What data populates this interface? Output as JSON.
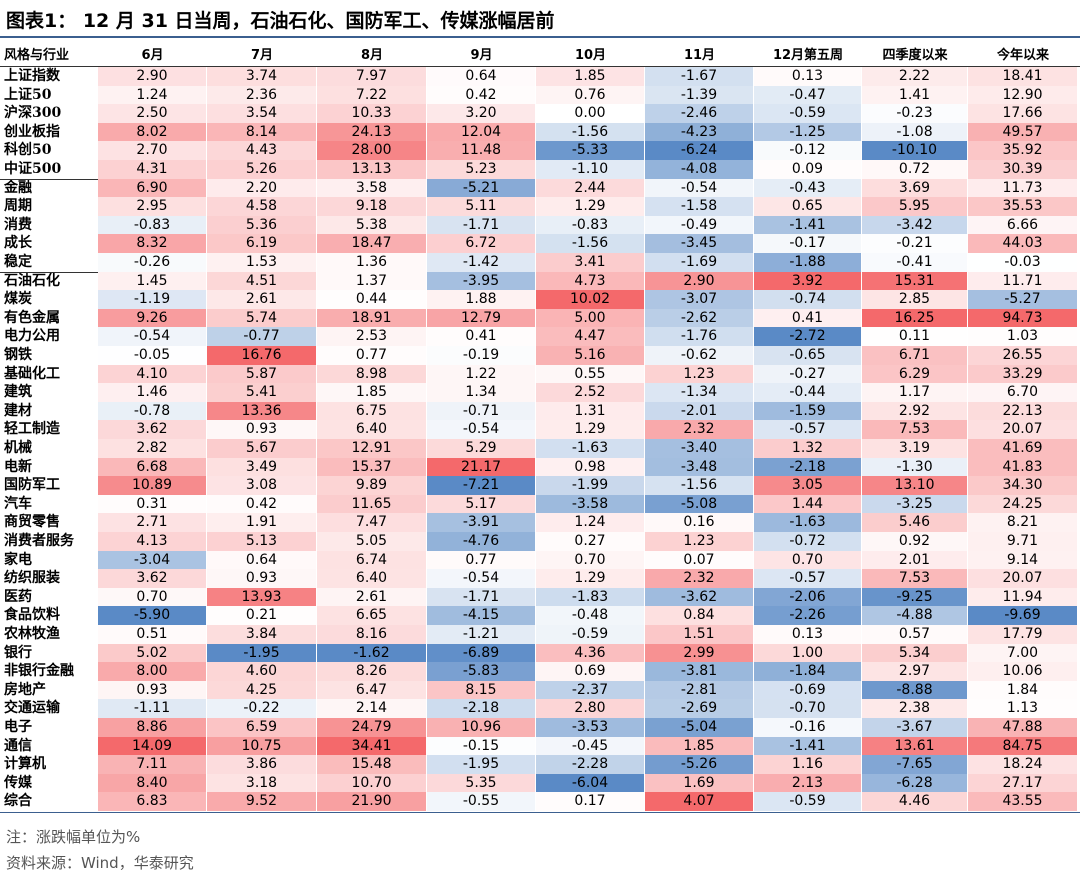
{
  "header": {
    "title": "图表1： 12 月 31 日当周，石油石化、国防军工、传媒涨幅居前"
  },
  "table": {
    "columns": [
      "风格与行业",
      "6月",
      "7月",
      "8月",
      "9月",
      "10月",
      "11月",
      "12月第五周",
      "四季度以来",
      "今年以来"
    ],
    "rows": [
      [
        "上证指数",
        "2.90",
        "3.74",
        "7.97",
        "0.64",
        "1.85",
        "-1.67",
        "0.13",
        "2.22",
        "18.41"
      ],
      [
        "上证50",
        "1.24",
        "2.36",
        "7.22",
        "0.42",
        "0.76",
        "-1.39",
        "-0.47",
        "1.41",
        "12.90"
      ],
      [
        "沪深300",
        "2.50",
        "3.54",
        "10.33",
        "3.20",
        "0.00",
        "-2.46",
        "-0.59",
        "-0.23",
        "17.66"
      ],
      [
        "创业板指",
        "8.02",
        "8.14",
        "24.13",
        "12.04",
        "-1.56",
        "-4.23",
        "-1.25",
        "-1.08",
        "49.57"
      ],
      [
        "科创50",
        "2.70",
        "4.43",
        "28.00",
        "11.48",
        "-5.33",
        "-6.24",
        "-0.12",
        "-10.10",
        "35.92"
      ],
      [
        "中证500",
        "4.31",
        "5.26",
        "13.13",
        "5.23",
        "-1.10",
        "-4.08",
        "0.09",
        "0.72",
        "30.39"
      ],
      [
        "金融",
        "6.90",
        "2.20",
        "3.58",
        "-5.21",
        "2.44",
        "-0.54",
        "-0.43",
        "3.69",
        "11.73"
      ],
      [
        "周期",
        "2.95",
        "4.58",
        "9.18",
        "5.11",
        "1.29",
        "-1.58",
        "0.65",
        "5.95",
        "35.53"
      ],
      [
        "消费",
        "-0.83",
        "5.36",
        "5.38",
        "-1.71",
        "-0.83",
        "-0.49",
        "-1.41",
        "-3.42",
        "6.66"
      ],
      [
        "成长",
        "8.32",
        "6.19",
        "18.47",
        "6.72",
        "-1.56",
        "-3.45",
        "-0.17",
        "-0.21",
        "44.03"
      ],
      [
        "稳定",
        "-0.26",
        "1.53",
        "1.36",
        "-1.42",
        "3.41",
        "-1.69",
        "-1.88",
        "-0.41",
        "-0.03"
      ],
      [
        "石油石化",
        "1.45",
        "4.51",
        "1.37",
        "-3.95",
        "4.73",
        "2.90",
        "3.92",
        "15.31",
        "11.71"
      ],
      [
        "煤炭",
        "-1.19",
        "2.61",
        "0.44",
        "1.88",
        "10.02",
        "-3.07",
        "-0.74",
        "2.85",
        "-5.27"
      ],
      [
        "有色金属",
        "9.26",
        "5.74",
        "18.91",
        "12.79",
        "5.00",
        "-2.62",
        "0.41",
        "16.25",
        "94.73"
      ],
      [
        "电力公用",
        "-0.54",
        "-0.77",
        "2.53",
        "0.41",
        "4.47",
        "-1.76",
        "-2.72",
        "0.11",
        "1.03"
      ],
      [
        "钢铁",
        "-0.05",
        "16.76",
        "0.77",
        "-0.19",
        "5.16",
        "-0.62",
        "-0.65",
        "6.71",
        "26.55"
      ],
      [
        "基础化工",
        "4.10",
        "5.87",
        "8.98",
        "1.22",
        "0.55",
        "1.23",
        "-0.27",
        "6.29",
        "33.29"
      ],
      [
        "建筑",
        "1.46",
        "5.41",
        "1.85",
        "1.34",
        "2.52",
        "-1.34",
        "-0.44",
        "1.17",
        "6.70"
      ],
      [
        "建材",
        "-0.78",
        "13.36",
        "6.75",
        "-0.71",
        "1.31",
        "-2.01",
        "-1.59",
        "2.92",
        "22.13"
      ],
      [
        "轻工制造",
        "3.62",
        "0.93",
        "6.40",
        "-0.54",
        "1.29",
        "2.32",
        "-0.57",
        "7.53",
        "20.07"
      ],
      [
        "机械",
        "2.82",
        "5.67",
        "12.91",
        "5.29",
        "-1.63",
        "-3.40",
        "1.32",
        "3.19",
        "41.69"
      ],
      [
        "电新",
        "6.68",
        "3.49",
        "15.37",
        "21.17",
        "0.98",
        "-3.48",
        "-2.18",
        "-1.30",
        "41.83"
      ],
      [
        "国防军工",
        "10.89",
        "3.08",
        "9.89",
        "-7.21",
        "-1.99",
        "-1.56",
        "3.05",
        "13.10",
        "34.30"
      ],
      [
        "汽车",
        "0.31",
        "0.42",
        "11.65",
        "5.17",
        "-3.58",
        "-5.08",
        "1.44",
        "-3.25",
        "24.25"
      ],
      [
        "商贸零售",
        "2.71",
        "1.91",
        "7.47",
        "-3.91",
        "1.24",
        "0.16",
        "-1.63",
        "5.46",
        "8.21"
      ],
      [
        "消费者服务",
        "4.13",
        "5.13",
        "5.05",
        "-4.76",
        "0.27",
        "1.23",
        "-0.72",
        "0.92",
        "9.71"
      ],
      [
        "家电",
        "-3.04",
        "0.64",
        "6.74",
        "0.77",
        "0.70",
        "0.07",
        "0.70",
        "2.01",
        "9.14"
      ],
      [
        "纺织服装",
        "3.62",
        "0.93",
        "6.40",
        "-0.54",
        "1.29",
        "2.32",
        "-0.57",
        "7.53",
        "20.07"
      ],
      [
        "医药",
        "0.70",
        "13.93",
        "2.61",
        "-1.71",
        "-1.83",
        "-3.62",
        "-2.06",
        "-9.25",
        "11.94"
      ],
      [
        "食品饮料",
        "-5.90",
        "0.21",
        "6.65",
        "-4.15",
        "-0.48",
        "0.84",
        "-2.26",
        "-4.88",
        "-9.69"
      ],
      [
        "农林牧渔",
        "0.51",
        "3.84",
        "8.16",
        "-1.21",
        "-0.59",
        "1.51",
        "0.13",
        "0.57",
        "17.79"
      ],
      [
        "银行",
        "5.02",
        "-1.95",
        "-1.62",
        "-6.89",
        "4.36",
        "2.99",
        "1.00",
        "5.34",
        "7.00"
      ],
      [
        "非银行金融",
        "8.00",
        "4.60",
        "8.26",
        "-5.83",
        "0.69",
        "-3.81",
        "-1.84",
        "2.97",
        "10.06"
      ],
      [
        "房地产",
        "0.93",
        "4.25",
        "6.47",
        "8.15",
        "-2.37",
        "-2.81",
        "-0.69",
        "-8.88",
        "1.84"
      ],
      [
        "交通运输",
        "-1.11",
        "-0.22",
        "2.14",
        "-2.18",
        "2.80",
        "-2.69",
        "-0.70",
        "2.38",
        "1.13"
      ],
      [
        "电子",
        "8.86",
        "6.59",
        "24.79",
        "10.96",
        "-3.53",
        "-5.04",
        "-0.16",
        "-3.67",
        "47.88"
      ],
      [
        "通信",
        "14.09",
        "10.75",
        "34.41",
        "-0.15",
        "-0.45",
        "1.85",
        "-1.41",
        "13.61",
        "84.75"
      ],
      [
        "计算机",
        "7.11",
        "3.86",
        "15.48",
        "-1.95",
        "-2.28",
        "-5.26",
        "1.16",
        "-7.65",
        "18.24"
      ],
      [
        "传媒",
        "8.40",
        "3.18",
        "10.70",
        "5.35",
        "-6.04",
        "1.69",
        "2.13",
        "-6.28",
        "27.17"
      ],
      [
        "综合",
        "6.83",
        "9.52",
        "21.90",
        "-0.55",
        "0.17",
        "4.07",
        "-0.59",
        "4.46",
        "43.55"
      ]
    ]
  },
  "footer": {
    "note": "注：涨跌幅单位为%",
    "source": "资料来源：Wind，华泰研究"
  }
}
